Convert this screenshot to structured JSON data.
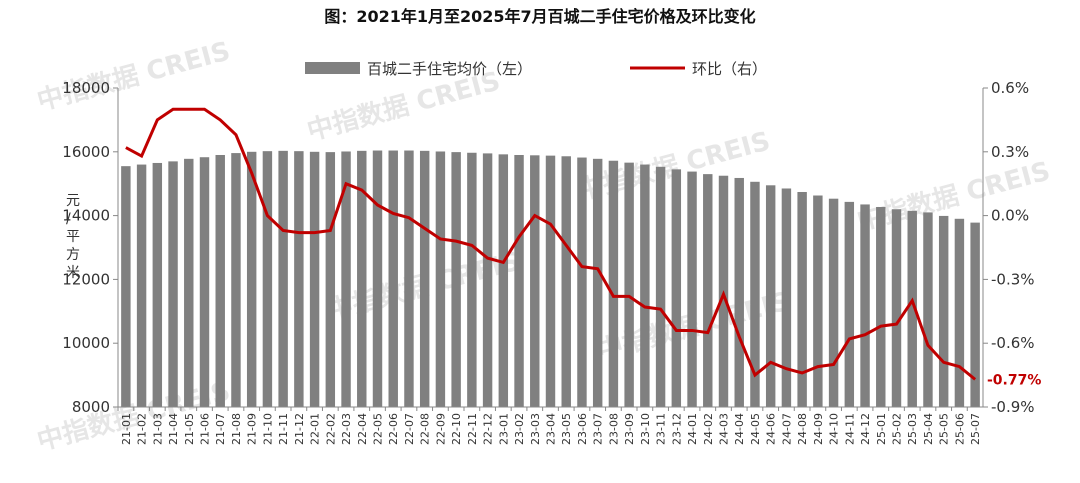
{
  "chart_data": {
    "type": "bar-line",
    "title": "图：2021年1月至2025年7月百城二手住宅价格及环比变化",
    "watermark": "中指数据 CREIS",
    "y_label": "元/平方米",
    "categories": [
      "21-01",
      "21-02",
      "21-03",
      "21-04",
      "21-05",
      "21-06",
      "21-07",
      "21-08",
      "21-09",
      "21-10",
      "21-11",
      "21-12",
      "22-01",
      "22-02",
      "22-03",
      "22-04",
      "22-05",
      "22-06",
      "22-07",
      "22-08",
      "22-09",
      "22-10",
      "22-11",
      "22-12",
      "23-01",
      "23-02",
      "23-03",
      "23-04",
      "23-05",
      "23-06",
      "23-07",
      "23-08",
      "23-09",
      "23-10",
      "23-11",
      "23-12",
      "24-01",
      "24-02",
      "24-03",
      "24-04",
      "24-05",
      "24-06",
      "24-07",
      "24-08",
      "24-09",
      "24-10",
      "24-11",
      "24-12",
      "25-01",
      "25-02",
      "25-03",
      "25-04",
      "25-05",
      "25-06",
      "25-07"
    ],
    "series": [
      {
        "name": "百城二手住宅均价（左）",
        "type": "bar",
        "color": "#808080",
        "values": [
          15550,
          15600,
          15650,
          15700,
          15780,
          15830,
          15900,
          15960,
          16000,
          16020,
          16030,
          16020,
          16000,
          15990,
          16010,
          16030,
          16040,
          16040,
          16040,
          16030,
          16010,
          15990,
          15970,
          15950,
          15920,
          15900,
          15890,
          15880,
          15860,
          15820,
          15780,
          15720,
          15660,
          15600,
          15530,
          15450,
          15380,
          15300,
          15250,
          15180,
          15060,
          14950,
          14850,
          14740,
          14630,
          14530,
          14430,
          14350,
          14270,
          14200,
          14150,
          14100,
          13990,
          13900,
          13780
        ]
      },
      {
        "name": "环比（右）",
        "type": "line",
        "axis": "y2",
        "color": "#c00000",
        "values": [
          0.32,
          0.28,
          0.45,
          0.5,
          0.5,
          0.5,
          0.45,
          0.38,
          0.2,
          0.0,
          -0.07,
          -0.08,
          -0.08,
          -0.07,
          0.15,
          0.12,
          0.05,
          0.01,
          -0.01,
          -0.06,
          -0.11,
          -0.12,
          -0.14,
          -0.2,
          -0.22,
          -0.1,
          0.0,
          -0.04,
          -0.14,
          -0.24,
          -0.25,
          -0.38,
          -0.38,
          -0.43,
          -0.44,
          -0.54,
          -0.54,
          -0.55,
          -0.37,
          -0.57,
          -0.75,
          -0.69,
          -0.72,
          -0.74,
          -0.71,
          -0.7,
          -0.58,
          -0.56,
          -0.52,
          -0.51,
          -0.4,
          -0.61,
          -0.69,
          -0.71,
          -0.77
        ],
        "value_labels": [
          null,
          null,
          null,
          null,
          null,
          null,
          null,
          null,
          null,
          null,
          null,
          null,
          null,
          null,
          null,
          null,
          null,
          null,
          null,
          null,
          null,
          null,
          null,
          null,
          null,
          null,
          null,
          null,
          null,
          null,
          null,
          null,
          null,
          null,
          null,
          null,
          null,
          null,
          null,
          null,
          null,
          null,
          null,
          null,
          null,
          null,
          null,
          null,
          null,
          null,
          null,
          null,
          null,
          null,
          "-0.77%"
        ]
      }
    ],
    "ylim": [
      8000,
      18000
    ],
    "yticks": [
      8000,
      10000,
      12000,
      14000,
      16000,
      18000
    ],
    "y2lim": [
      -0.9,
      0.6
    ],
    "y2ticks": [
      {
        "value": -0.9,
        "label": "-0.9%"
      },
      {
        "value": -0.6,
        "label": "-0.6%"
      },
      {
        "value": -0.3,
        "label": "-0.3%"
      },
      {
        "value": 0.0,
        "label": "0.0%"
      },
      {
        "value": 0.3,
        "label": "0.3%"
      },
      {
        "value": 0.6,
        "label": "0.6%"
      }
    ]
  }
}
